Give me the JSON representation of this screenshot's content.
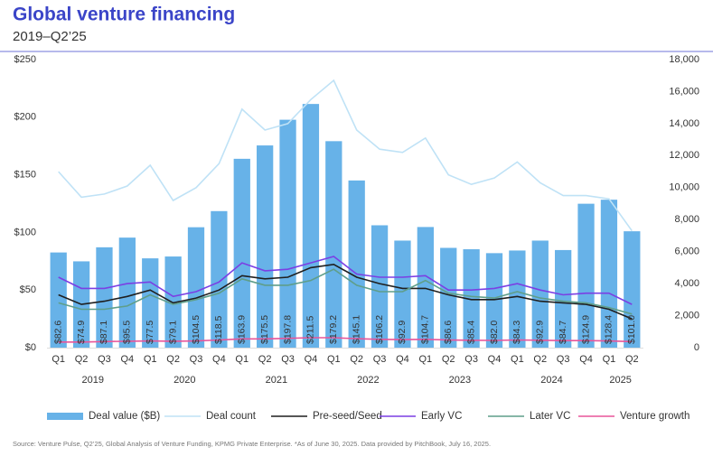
{
  "chart_data": {
    "type": "bar",
    "title": "Global venture financing",
    "subtitle": "2019–Q2’25",
    "categories": [
      "Q1",
      "Q2",
      "Q3",
      "Q4",
      "Q1",
      "Q2",
      "Q3",
      "Q4",
      "Q1",
      "Q2",
      "Q3",
      "Q4",
      "Q1",
      "Q2",
      "Q3",
      "Q4",
      "Q1",
      "Q2",
      "Q3",
      "Q4",
      "Q1",
      "Q2",
      "Q3",
      "Q4",
      "Q1",
      "Q2"
    ],
    "years": [
      "2019",
      "2020",
      "2021",
      "2022",
      "2023",
      "2024",
      "2025"
    ],
    "ylim": [
      0,
      250
    ],
    "yticks": [
      {
        "value": 0,
        "label": "$0"
      },
      {
        "value": 50,
        "label": "$50"
      },
      {
        "value": 100,
        "label": "$100"
      },
      {
        "value": 150,
        "label": "$150"
      },
      {
        "value": 200,
        "label": "$200"
      },
      {
        "value": 250,
        "label": "$250"
      }
    ],
    "y2lim": [
      0,
      18000
    ],
    "y2ticks": [
      0,
      {
        "value": 2000,
        "label": "2,000"
      },
      {
        "value": 4000,
        "label": "4,000"
      },
      {
        "value": 6000,
        "label": "6,000"
      },
      {
        "value": 8000,
        "label": "8,000"
      },
      {
        "value": 10000,
        "label": "10,000"
      },
      {
        "value": 12000,
        "label": "12,000"
      },
      {
        "value": 14000,
        "label": "14,000"
      },
      {
        "value": 16000,
        "label": "16,000"
      },
      {
        "value": 18000,
        "label": "18,000"
      }
    ],
    "series": [
      {
        "name": "Deal value ($B)",
        "type": "bar",
        "color": "#67b2e8",
        "values": [
          82.6,
          74.9,
          87.1,
          95.5,
          77.5,
          79.1,
          104.5,
          118.5,
          163.9,
          175.5,
          197.8,
          211.5,
          179.2,
          145.1,
          106.2,
          92.9,
          104.7,
          86.6,
          85.4,
          82.0,
          84.3,
          92.9,
          84.7,
          124.9,
          128.4,
          101.0
        ],
        "value_labels": [
          "$82.6",
          "$74.9",
          "$87.1",
          "$95.5",
          "$77.5",
          "$79.1",
          "$104.5",
          "$118.5",
          "$163.9",
          "$175.5",
          "$197.8",
          "$211.5",
          "$179.2",
          "$145.1",
          "$106.2",
          "$92.9",
          "$104.7",
          "$86.6",
          "$85.4",
          "$82.0",
          "$84.3",
          "$92.9",
          "$84.7",
          "$124.9",
          "$128.4",
          "$101.0"
        ]
      },
      {
        "name": "Deal count",
        "type": "line",
        "axis": "y2",
        "color": "#bfe2f6",
        "values": [
          11000,
          9400,
          9600,
          10100,
          11400,
          9200,
          10000,
          11500,
          14900,
          13600,
          14000,
          15500,
          16700,
          13600,
          12400,
          12200,
          13100,
          10800,
          10200,
          10600,
          11600,
          10300,
          9500,
          9500,
          9300,
          7300
        ]
      },
      {
        "name": "Pre-seed/Seed",
        "type": "line",
        "axis": "y2",
        "color": "#1f1f1f",
        "values": [
          3300,
          2700,
          2900,
          3200,
          3600,
          2800,
          3100,
          3600,
          4500,
          4300,
          4400,
          5000,
          5200,
          4400,
          4000,
          3700,
          3700,
          3300,
          3000,
          3000,
          3200,
          2900,
          2800,
          2700,
          2400,
          1800
        ]
      },
      {
        "name": "Early VC",
        "type": "line",
        "axis": "y2",
        "color": "#7b3fe4",
        "values": [
          4400,
          3700,
          3700,
          4000,
          4100,
          3200,
          3500,
          4100,
          5300,
          4800,
          4900,
          5300,
          5700,
          4600,
          4400,
          4400,
          4500,
          3600,
          3600,
          3700,
          4000,
          3600,
          3300,
          3400,
          3400,
          2700
        ]
      },
      {
        "name": "Later VC",
        "type": "line",
        "axis": "y2",
        "color": "#5f9e8a",
        "values": [
          2800,
          2400,
          2400,
          2600,
          3300,
          2700,
          3000,
          3400,
          4300,
          3900,
          3900,
          4200,
          4900,
          3900,
          3500,
          3500,
          4200,
          3400,
          3200,
          3100,
          3500,
          3100,
          2900,
          2800,
          2500,
          2100
        ]
      },
      {
        "name": "Venture growth",
        "type": "line",
        "axis": "y2",
        "color": "#e8559a",
        "values": [
          350,
          350,
          380,
          400,
          420,
          400,
          420,
          480,
          550,
          550,
          580,
          620,
          620,
          560,
          520,
          500,
          520,
          480,
          460,
          450,
          480,
          460,
          440,
          440,
          420,
          380
        ]
      }
    ],
    "source": "Source: Venture Pulse, Q2’25, Global Analysis of Venture Funding, KPMG Private Enterprise. *As of June 30, 2025. Data provided by PitchBook, July 16, 2025."
  }
}
